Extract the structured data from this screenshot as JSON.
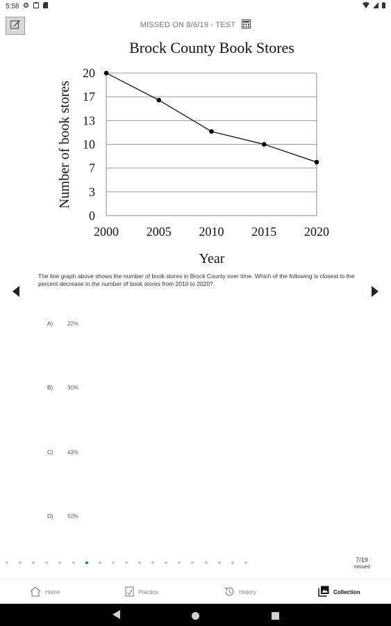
{
  "status_bar": {
    "time": "5:58",
    "left_icons": [
      "gear-icon",
      "clipboard-icon",
      "sd-card-icon"
    ],
    "right_icons": [
      "wifi-icon",
      "signal-icon",
      "battery-icon"
    ]
  },
  "header": {
    "missed_text": "MISSED ON 8/6/19 - TEST",
    "edit_icon": "edit-icon",
    "calculator_icon": "calculator-icon"
  },
  "chart_data": {
    "type": "line",
    "title": "Brock County Book Stores",
    "xlabel": "Year",
    "ylabel": "Number of  book stores",
    "x": [
      2000,
      2005,
      2010,
      2015,
      2020
    ],
    "y": [
      20,
      16.2,
      11.8,
      10,
      7.5
    ],
    "x_tick_labels": [
      "2000",
      "2005",
      "2010",
      "2015",
      "2020"
    ],
    "y_ticks": [
      0,
      3.33,
      6.67,
      10,
      13.33,
      16.67,
      20
    ],
    "y_tick_labels": [
      "0",
      "3",
      "7",
      "10",
      "13",
      "17",
      "20"
    ],
    "ylim": [
      0,
      20
    ],
    "xlim": [
      2000,
      2020
    ],
    "grid": "horizontal",
    "line_color": "#000000",
    "grid_color": "#999999"
  },
  "question": {
    "text": "The line graph above shows the number of book stores in Brock County over time. Which of the following is closest to the percent decrease in the number of book stores from 2010 to 2020?"
  },
  "choices": [
    {
      "letter": "A)",
      "value": "22%"
    },
    {
      "letter": "B)",
      "value": "30%"
    },
    {
      "letter": "C)",
      "value": "43%"
    },
    {
      "letter": "D)",
      "value": "50%"
    }
  ],
  "pager": {
    "total_dots": 19,
    "active_index": 6,
    "active_color": "#1976d2",
    "count": "7/19",
    "label": "missed"
  },
  "bottom_nav": [
    {
      "label": "Home",
      "icon": "home-icon",
      "active": false
    },
    {
      "label": "Practice",
      "icon": "practice-icon",
      "active": false
    },
    {
      "label": "History",
      "icon": "history-icon",
      "active": false
    },
    {
      "label": "Collection",
      "icon": "collection-icon",
      "active": true
    }
  ],
  "system_nav": {
    "icons": [
      "back-icon",
      "home-circle-icon",
      "recents-icon"
    ]
  }
}
